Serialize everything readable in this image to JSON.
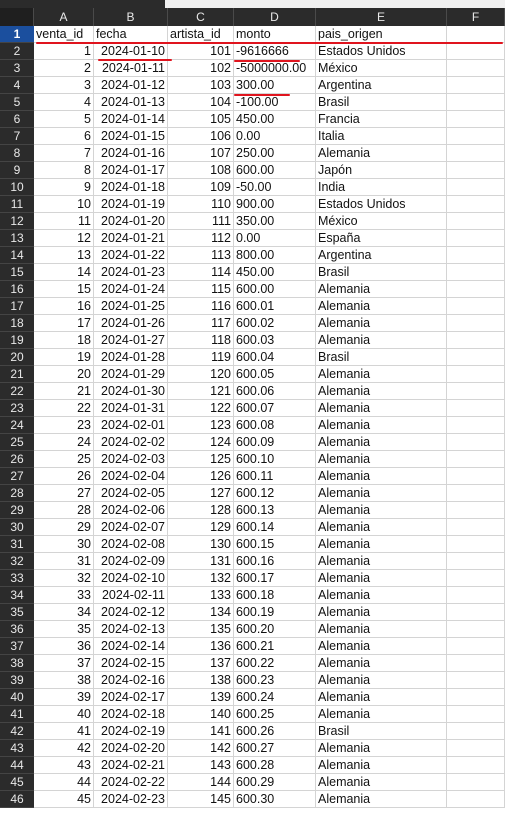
{
  "columns": [
    "A",
    "B",
    "C",
    "D",
    "E",
    "F"
  ],
  "header": {
    "row_number": "1",
    "venta_id": "venta_id",
    "fecha": "fecha",
    "artista_id": "artista_id",
    "monto": "monto",
    "pais_origen": "pais_origen"
  },
  "rows": [
    {
      "n": "2",
      "id": "1",
      "fecha": "2024-01-10",
      "artista": "101",
      "monto": "-9616666",
      "pais": "Estados Unidos"
    },
    {
      "n": "3",
      "id": "2",
      "fecha": "2024-01-11",
      "artista": "102",
      "monto": "-5000000.00",
      "pais": "México"
    },
    {
      "n": "4",
      "id": "3",
      "fecha": "2024-01-12",
      "artista": "103",
      "monto": "300.00",
      "pais": "Argentina"
    },
    {
      "n": "5",
      "id": "4",
      "fecha": "2024-01-13",
      "artista": "104",
      "monto": "-100.00",
      "pais": "Brasil"
    },
    {
      "n": "6",
      "id": "5",
      "fecha": "2024-01-14",
      "artista": "105",
      "monto": "450.00",
      "pais": "Francia"
    },
    {
      "n": "7",
      "id": "6",
      "fecha": "2024-01-15",
      "artista": "106",
      "monto": "0.00",
      "pais": "Italia"
    },
    {
      "n": "8",
      "id": "7",
      "fecha": "2024-01-16",
      "artista": "107",
      "monto": "250.00",
      "pais": "Alemania"
    },
    {
      "n": "9",
      "id": "8",
      "fecha": "2024-01-17",
      "artista": "108",
      "monto": "600.00",
      "pais": "Japón"
    },
    {
      "n": "10",
      "id": "9",
      "fecha": "2024-01-18",
      "artista": "109",
      "monto": "-50.00",
      "pais": "India"
    },
    {
      "n": "11",
      "id": "10",
      "fecha": "2024-01-19",
      "artista": "110",
      "monto": "900.00",
      "pais": "Estados Unidos"
    },
    {
      "n": "12",
      "id": "11",
      "fecha": "2024-01-20",
      "artista": "111",
      "monto": "350.00",
      "pais": "México"
    },
    {
      "n": "13",
      "id": "12",
      "fecha": "2024-01-21",
      "artista": "112",
      "monto": "0.00",
      "pais": "España"
    },
    {
      "n": "14",
      "id": "13",
      "fecha": "2024-01-22",
      "artista": "113",
      "monto": "800.00",
      "pais": "Argentina"
    },
    {
      "n": "15",
      "id": "14",
      "fecha": "2024-01-23",
      "artista": "114",
      "monto": "450.00",
      "pais": "Brasil"
    },
    {
      "n": "16",
      "id": "15",
      "fecha": "2024-01-24",
      "artista": "115",
      "monto": "600.00",
      "pais": "Alemania"
    },
    {
      "n": "17",
      "id": "16",
      "fecha": "2024-01-25",
      "artista": "116",
      "monto": "600.01",
      "pais": "Alemania"
    },
    {
      "n": "18",
      "id": "17",
      "fecha": "2024-01-26",
      "artista": "117",
      "monto": "600.02",
      "pais": "Alemania"
    },
    {
      "n": "19",
      "id": "18",
      "fecha": "2024-01-27",
      "artista": "118",
      "monto": "600.03",
      "pais": "Alemania"
    },
    {
      "n": "20",
      "id": "19",
      "fecha": "2024-01-28",
      "artista": "119",
      "monto": "600.04",
      "pais": "Brasil"
    },
    {
      "n": "21",
      "id": "20",
      "fecha": "2024-01-29",
      "artista": "120",
      "monto": "600.05",
      "pais": "Alemania"
    },
    {
      "n": "22",
      "id": "21",
      "fecha": "2024-01-30",
      "artista": "121",
      "monto": "600.06",
      "pais": "Alemania"
    },
    {
      "n": "23",
      "id": "22",
      "fecha": "2024-01-31",
      "artista": "122",
      "monto": "600.07",
      "pais": "Alemania"
    },
    {
      "n": "24",
      "id": "23",
      "fecha": "2024-02-01",
      "artista": "123",
      "monto": "600.08",
      "pais": "Alemania"
    },
    {
      "n": "25",
      "id": "24",
      "fecha": "2024-02-02",
      "artista": "124",
      "monto": "600.09",
      "pais": "Alemania"
    },
    {
      "n": "26",
      "id": "25",
      "fecha": "2024-02-03",
      "artista": "125",
      "monto": "600.10",
      "pais": "Alemania"
    },
    {
      "n": "27",
      "id": "26",
      "fecha": "2024-02-04",
      "artista": "126",
      "monto": "600.11",
      "pais": "Alemania"
    },
    {
      "n": "28",
      "id": "27",
      "fecha": "2024-02-05",
      "artista": "127",
      "monto": "600.12",
      "pais": "Alemania"
    },
    {
      "n": "29",
      "id": "28",
      "fecha": "2024-02-06",
      "artista": "128",
      "monto": "600.13",
      "pais": "Alemania"
    },
    {
      "n": "30",
      "id": "29",
      "fecha": "2024-02-07",
      "artista": "129",
      "monto": "600.14",
      "pais": "Alemania"
    },
    {
      "n": "31",
      "id": "30",
      "fecha": "2024-02-08",
      "artista": "130",
      "monto": "600.15",
      "pais": "Alemania"
    },
    {
      "n": "32",
      "id": "31",
      "fecha": "2024-02-09",
      "artista": "131",
      "monto": "600.16",
      "pais": "Alemania"
    },
    {
      "n": "33",
      "id": "32",
      "fecha": "2024-02-10",
      "artista": "132",
      "monto": "600.17",
      "pais": "Alemania"
    },
    {
      "n": "34",
      "id": "33",
      "fecha": "2024-02-11",
      "artista": "133",
      "monto": "600.18",
      "pais": "Alemania"
    },
    {
      "n": "35",
      "id": "34",
      "fecha": "2024-02-12",
      "artista": "134",
      "monto": "600.19",
      "pais": "Alemania"
    },
    {
      "n": "36",
      "id": "35",
      "fecha": "2024-02-13",
      "artista": "135",
      "monto": "600.20",
      "pais": "Alemania"
    },
    {
      "n": "37",
      "id": "36",
      "fecha": "2024-02-14",
      "artista": "136",
      "monto": "600.21",
      "pais": "Alemania"
    },
    {
      "n": "38",
      "id": "37",
      "fecha": "2024-02-15",
      "artista": "137",
      "monto": "600.22",
      "pais": "Alemania"
    },
    {
      "n": "39",
      "id": "38",
      "fecha": "2024-02-16",
      "artista": "138",
      "monto": "600.23",
      "pais": "Alemania"
    },
    {
      "n": "40",
      "id": "39",
      "fecha": "2024-02-17",
      "artista": "139",
      "monto": "600.24",
      "pais": "Alemania"
    },
    {
      "n": "41",
      "id": "40",
      "fecha": "2024-02-18",
      "artista": "140",
      "monto": "600.25",
      "pais": "Alemania"
    },
    {
      "n": "42",
      "id": "41",
      "fecha": "2024-02-19",
      "artista": "141",
      "monto": "600.26",
      "pais": "Brasil"
    },
    {
      "n": "43",
      "id": "42",
      "fecha": "2024-02-20",
      "artista": "142",
      "monto": "600.27",
      "pais": "Alemania"
    },
    {
      "n": "44",
      "id": "43",
      "fecha": "2024-02-21",
      "artista": "143",
      "monto": "600.28",
      "pais": "Alemania"
    },
    {
      "n": "45",
      "id": "44",
      "fecha": "2024-02-22",
      "artista": "144",
      "monto": "600.29",
      "pais": "Alemania"
    },
    {
      "n": "46",
      "id": "45",
      "fecha": "2024-02-23",
      "artista": "145",
      "monto": "600.30",
      "pais": "Alemania"
    }
  ],
  "colors": {
    "header_bg": "#2b2b2b",
    "active_row_header": "#1b4f9e",
    "annotation": "#e0141e",
    "grid_line": "#d4d4d4"
  }
}
